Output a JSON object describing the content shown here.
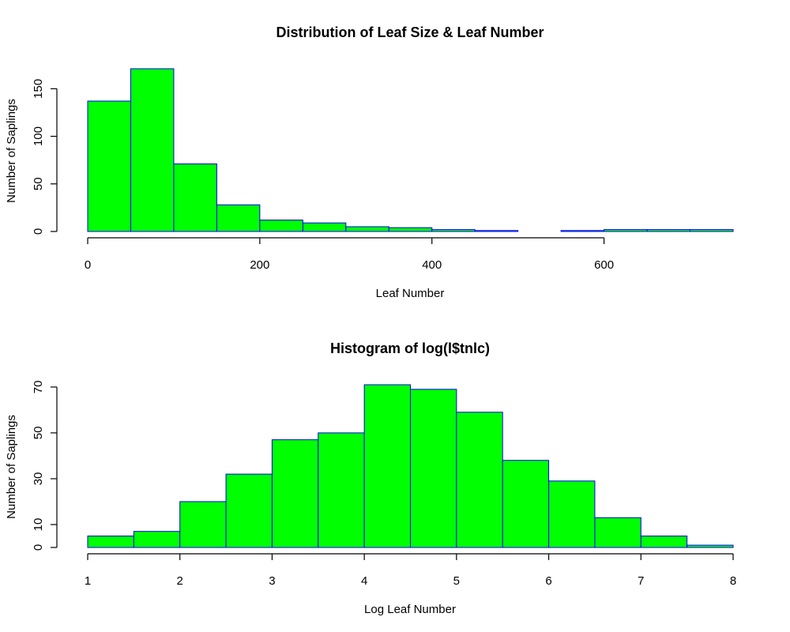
{
  "chart_data": [
    {
      "type": "bar",
      "title": "Distribution of Leaf Size & Leaf Number",
      "xlabel": "Leaf Number",
      "ylabel": "Number of Saplings",
      "bin_edges": [
        0,
        50,
        100,
        150,
        200,
        250,
        300,
        350,
        400,
        450,
        500,
        550,
        600,
        650,
        700,
        750
      ],
      "values": [
        137,
        171,
        71,
        28,
        12,
        9,
        5,
        4,
        2,
        1,
        0,
        1,
        2,
        2,
        2
      ],
      "xticks": [
        0,
        200,
        400,
        600
      ],
      "yticks": [
        0,
        50,
        100,
        150
      ],
      "xlim": [
        0,
        750
      ],
      "ylim": [
        0,
        171
      ],
      "bar_fill": "#00ff00",
      "bar_border": "#0000ff",
      "grid": false
    },
    {
      "type": "bar",
      "title": "Histogram of log(l$tnlc)",
      "xlabel": "Log Leaf Number",
      "ylabel": "Number of Saplings",
      "bin_edges": [
        1,
        1.5,
        2,
        2.5,
        3,
        3.5,
        4,
        4.5,
        5,
        5.5,
        6,
        6.5,
        7,
        7.5,
        8
      ],
      "values": [
        5,
        7,
        20,
        32,
        47,
        50,
        71,
        69,
        59,
        38,
        29,
        13,
        5,
        1
      ],
      "xticks": [
        1,
        2,
        3,
        4,
        5,
        6,
        7,
        8
      ],
      "yticks": [
        0,
        10,
        30,
        50,
        70
      ],
      "xlim": [
        1,
        8
      ],
      "ylim": [
        0,
        71
      ],
      "bar_fill": "#00ff00",
      "bar_border": "#0000ff",
      "grid": false
    }
  ]
}
